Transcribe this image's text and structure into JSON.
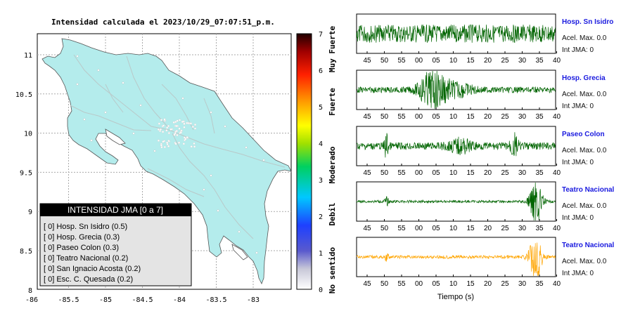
{
  "map": {
    "title": "Intensidad calculada el 2023/10/29_07:07:51_p.m.",
    "x_ticks": [
      "-86",
      "-85.5",
      "-85",
      "-84.5",
      "-84",
      "-83.5",
      "-83"
    ],
    "y_ticks": [
      "11",
      "10.5",
      "10",
      "9.5",
      "9",
      "8.5",
      "8"
    ],
    "legend": {
      "title": "INTENSIDAD JMA [0 a 7]",
      "entries": [
        "[ 0]  Hosp. Sn Isidro (0.5)",
        "[ 0]  Hosp. Grecia (0.3)",
        "[ 0]  Paseo Colon (0.3)",
        "[ 0]  Teatro Nacional (0.2)",
        "[ 0]  San Ignacio Acosta (0.2)",
        "[ 0]  Esc. C. Quesada (0.2)"
      ]
    },
    "land_color": "#b4ecec"
  },
  "colorbar": {
    "ticks": [
      "0",
      "1",
      "2",
      "3",
      "4",
      "5",
      "6",
      "7"
    ],
    "labels": [
      "No sentido",
      "Debil",
      "Moderado",
      "Fuerte",
      "Muy Fuerte"
    ]
  },
  "chart_data": [
    {
      "type": "line",
      "title": "Hosp. Sn Isidro",
      "x_ticks": [
        "45",
        "50",
        "55",
        "00",
        "05",
        "10",
        "15",
        "20",
        "25",
        "30",
        "35",
        "40"
      ],
      "color": "#006400",
      "info": [
        "Acel. Max. 0.0",
        "Int JMA: 0"
      ]
    },
    {
      "type": "line",
      "title": "Hosp. Grecia",
      "x_ticks": [
        "45",
        "50",
        "55",
        "00",
        "05",
        "10",
        "15",
        "20",
        "25",
        "30",
        "35",
        "40"
      ],
      "color": "#006400",
      "info": [
        "Acel. Max. 0.0",
        "Int JMA: 0"
      ]
    },
    {
      "type": "line",
      "title": "Paseo Colon",
      "x_ticks": [
        "45",
        "50",
        "55",
        "00",
        "05",
        "10",
        "15",
        "20",
        "25",
        "30",
        "35",
        "40"
      ],
      "color": "#006400",
      "info": [
        "Acel. Max. 0.0",
        "Int JMA: 0"
      ]
    },
    {
      "type": "line",
      "title": "Teatro Nacional",
      "x_ticks": [
        "45",
        "50",
        "55",
        "00",
        "05",
        "10",
        "15",
        "20",
        "25",
        "30",
        "35",
        "40"
      ],
      "color": "#006400",
      "info": [
        "Acel. Max. 0.0",
        "Int JMA: 0"
      ]
    },
    {
      "type": "line",
      "title": "Teatro Nacional",
      "x_ticks": [
        "45",
        "50",
        "55",
        "00",
        "05",
        "10",
        "15",
        "20",
        "25",
        "30",
        "35",
        "40"
      ],
      "color": "#ffa500",
      "xlabel": "Tiempo (s)",
      "info": [
        "Acel. Max. 0.0",
        "Int JMA: 0"
      ]
    }
  ]
}
